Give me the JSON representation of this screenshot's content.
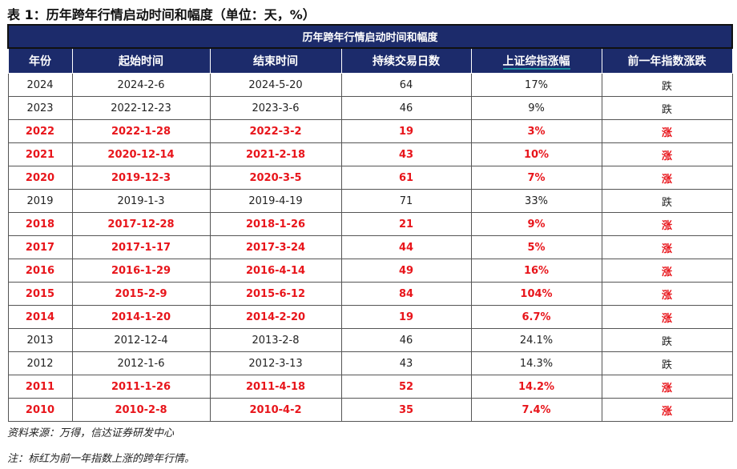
{
  "caption": "表 1：历年跨年行情启动时间和幅度（单位：天，%）",
  "table": {
    "title": "历年跨年行情启动时间和幅度",
    "headers": [
      "年份",
      "起始时间",
      "结束时间",
      "持续交易日数",
      "上证综指涨幅",
      "前一年指数涨跌"
    ],
    "rows": [
      {
        "c": [
          "2024",
          "2024-2-6",
          "2024-5-20",
          "64",
          "17%",
          "跌"
        ],
        "red": false
      },
      {
        "c": [
          "2023",
          "2022-12-23",
          "2023-3-6",
          "46",
          "9%",
          "跌"
        ],
        "red": false
      },
      {
        "c": [
          "2022",
          "2022-1-28",
          "2022-3-2",
          "19",
          "3%",
          "涨"
        ],
        "red": true
      },
      {
        "c": [
          "2021",
          "2020-12-14",
          "2021-2-18",
          "43",
          "10%",
          "涨"
        ],
        "red": true
      },
      {
        "c": [
          "2020",
          "2019-12-3",
          "2020-3-5",
          "61",
          "7%",
          "涨"
        ],
        "red": true
      },
      {
        "c": [
          "2019",
          "2019-1-3",
          "2019-4-19",
          "71",
          "33%",
          "跌"
        ],
        "red": false
      },
      {
        "c": [
          "2018",
          "2017-12-28",
          "2018-1-26",
          "21",
          "9%",
          "涨"
        ],
        "red": true
      },
      {
        "c": [
          "2017",
          "2017-1-17",
          "2017-3-24",
          "44",
          "5%",
          "涨"
        ],
        "red": true
      },
      {
        "c": [
          "2016",
          "2016-1-29",
          "2016-4-14",
          "49",
          "16%",
          "涨"
        ],
        "red": true
      },
      {
        "c": [
          "2015",
          "2015-2-9",
          "2015-6-12",
          "84",
          "104%",
          "涨"
        ],
        "red": true
      },
      {
        "c": [
          "2014",
          "2014-1-20",
          "2014-2-20",
          "19",
          "6.7%",
          "涨"
        ],
        "red": true
      },
      {
        "c": [
          "2013",
          "2012-12-4",
          "2013-2-8",
          "46",
          "24.1%",
          "跌"
        ],
        "red": false
      },
      {
        "c": [
          "2012",
          "2012-1-6",
          "2012-3-13",
          "43",
          "14.3%",
          "跌"
        ],
        "red": false
      },
      {
        "c": [
          "2011",
          "2011-1-26",
          "2011-4-18",
          "52",
          "14.2%",
          "涨"
        ],
        "red": true
      },
      {
        "c": [
          "2010",
          "2010-2-8",
          "2010-4-2",
          "35",
          "7.4%",
          "涨"
        ],
        "red": true
      }
    ]
  },
  "source": "资料来源：万得，信达证券研发中心",
  "note": "注：标红为前一年指数上涨的跨年行情。",
  "colors": {
    "header_bg": "#1c2b6b",
    "highlight": "#e8151b"
  }
}
